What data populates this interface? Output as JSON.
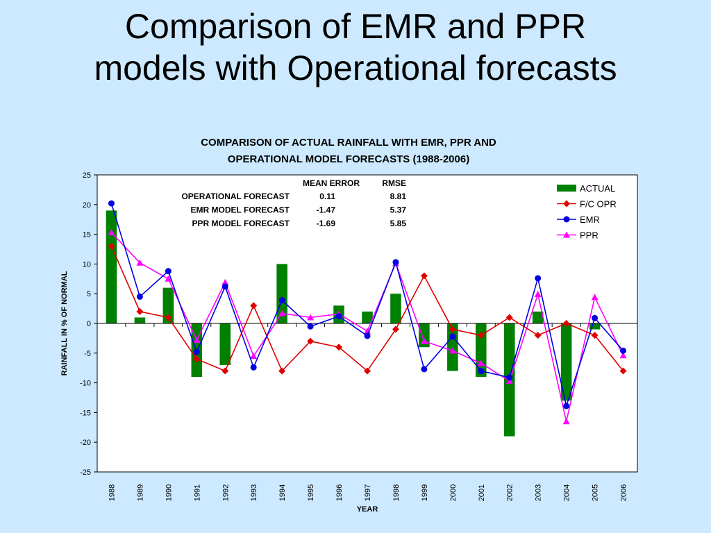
{
  "slide": {
    "title_line1": "Comparison of EMR and PPR",
    "title_line2": "models with Operational forecasts"
  },
  "chart_data": {
    "type": "bar+line",
    "title_lines": [
      "COMPARISON OF ACTUAL RAINFALL WITH EMR, PPR AND",
      "OPERATIONAL MODEL FORECASTS (1988-2006)"
    ],
    "xlabel": "YEAR",
    "ylabel": "RAINFALL IN % OF NORMAL",
    "ylim": [
      -25,
      25
    ],
    "ytick_step": 5,
    "grid": false,
    "legend_position": "top-right",
    "categories": [
      "1988",
      "1989",
      "1990",
      "1991",
      "1992",
      "1993",
      "1994",
      "1995",
      "1996",
      "1997",
      "1998",
      "1999",
      "2000",
      "2001",
      "2002",
      "2003",
      "2004",
      "2005",
      "2006"
    ],
    "series": [
      {
        "name": "ACTUAL",
        "kind": "bar",
        "color": "#008000",
        "values": [
          19,
          1,
          6,
          -9,
          -7,
          0,
          10,
          0,
          3,
          2,
          5,
          -4,
          -8,
          -9,
          -19,
          2,
          -13,
          -1,
          0
        ]
      },
      {
        "name": "F/C OPR",
        "kind": "line",
        "marker": "diamond",
        "color": "#e00000",
        "values": [
          13,
          2,
          1,
          -6,
          -8,
          3,
          -8,
          -3,
          -4,
          -8,
          -1,
          8,
          -1,
          -2,
          1,
          -2,
          0,
          -2,
          -8
        ]
      },
      {
        "name": "EMR",
        "kind": "line",
        "marker": "circle",
        "color": "#0000e0",
        "values": [
          20.2,
          4.5,
          8.8,
          -4.8,
          6.2,
          -7.4,
          3.9,
          -0.5,
          1.2,
          -2.1,
          10.3,
          -7.7,
          -2.2,
          -8,
          -9.1,
          7.6,
          -13.9,
          0.9,
          -4.6
        ]
      },
      {
        "name": "PPR",
        "kind": "line",
        "marker": "triangle",
        "color": "#ff00ff",
        "values": [
          15.3,
          10.2,
          7.5,
          -2.8,
          6.9,
          -5.5,
          1.7,
          1.0,
          1.6,
          -1.3,
          10.1,
          -3.0,
          -4.6,
          -6.7,
          -9.7,
          4.9,
          -16.5,
          4.4,
          -5.4
        ]
      }
    ],
    "error_table": {
      "headers": [
        "",
        "MEAN ERROR",
        "RMSE"
      ],
      "rows": [
        [
          "OPERATIONAL FORECAST",
          "0.11",
          "8.81"
        ],
        [
          "EMR MODEL FORECAST",
          "-1.47",
          "5.37"
        ],
        [
          "PPR MODEL FORECAST",
          "-1.69",
          "5.85"
        ]
      ]
    }
  }
}
